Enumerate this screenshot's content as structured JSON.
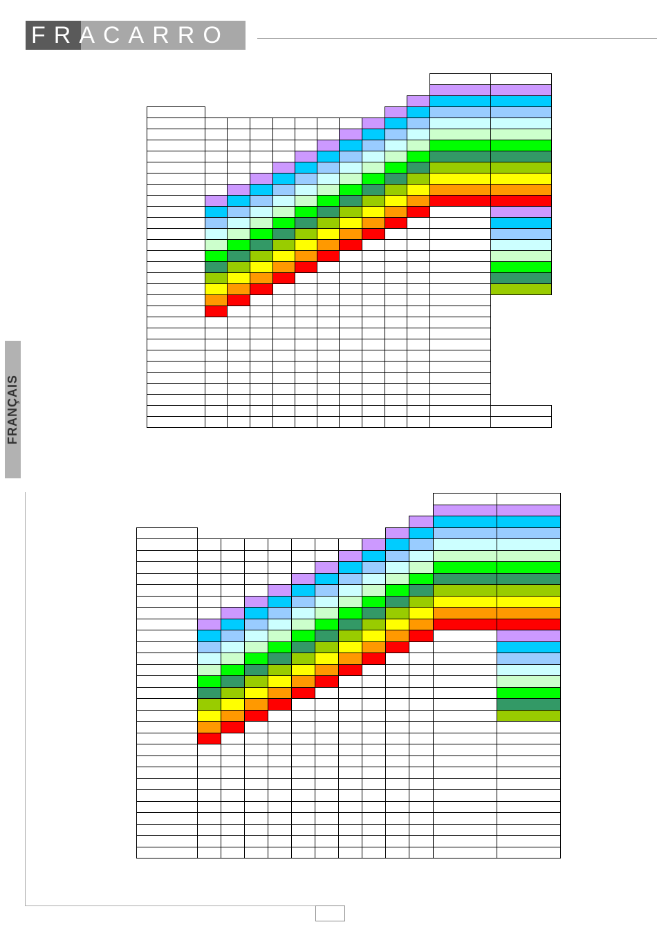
{
  "header": {
    "logo_text": "FRACARRO",
    "logo_dark": "#5a5a5a",
    "logo_light": "#a8a8a8"
  },
  "sidebar": {
    "language_label": "FRANÇAIS"
  },
  "footer": {
    "page_number": ""
  },
  "palette": [
    "#cc99ff",
    "#00ccff",
    "#99ccff",
    "#ccffff",
    "#ccffcc",
    "#00ff00",
    "#339966",
    "#99cc00",
    "#ffff00",
    "#ff9900",
    "#ff0000"
  ],
  "tables": [
    {
      "title_cell": "",
      "side_header": "",
      "row_labels": [
        "",
        "",
        "",
        "",
        "",
        "",
        "",
        "",
        "",
        "",
        "",
        "",
        "",
        "",
        "",
        "",
        "",
        "",
        "",
        "",
        "",
        "",
        "",
        "",
        "",
        "",
        "",
        "",
        "",
        "",
        ""
      ],
      "column_values": [
        "",
        "",
        "",
        "",
        "",
        "",
        "",
        "",
        "",
        "",
        ""
      ],
      "side_values": [
        "",
        "",
        "",
        "",
        "",
        "",
        "",
        "",
        "",
        "",
        "",
        "",
        "",
        "",
        "",
        "",
        "",
        "",
        "",
        ""
      ]
    },
    {
      "title_cell": "",
      "side_header": "",
      "row_labels": [
        "",
        "",
        "",
        "",
        "",
        "",
        "",
        "",
        "",
        "",
        "",
        "",
        "",
        "",
        "",
        "",
        "",
        "",
        "",
        "",
        "",
        "",
        "",
        "",
        "",
        "",
        "",
        "",
        "",
        ""
      ],
      "column_values": [
        "",
        "",
        "",
        "",
        "",
        "",
        "",
        "",
        "",
        "",
        ""
      ],
      "side_values": [
        "",
        "",
        "",
        "",
        "",
        "",
        "",
        "",
        "",
        "",
        "",
        "",
        "",
        "",
        "",
        "",
        "",
        "",
        "",
        "",
        "",
        "",
        "",
        "",
        "",
        "",
        "",
        "",
        "",
        "",
        "",
        ""
      ]
    }
  ]
}
